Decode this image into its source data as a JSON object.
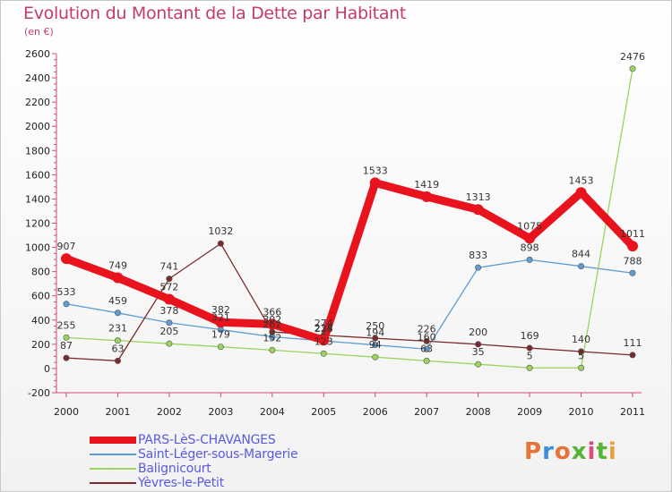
{
  "title": "Evolution du Montant de la Dette par Habitant",
  "subtitle": "(en €)",
  "logo": {
    "text": "Proxiti",
    "colors": [
      "#e6743a",
      "#3a8fd9",
      "#e6743a",
      "#55b533",
      "#d94f7a",
      "#55b533",
      "#e6a13a"
    ]
  },
  "chart_data": {
    "type": "line",
    "x": [
      "2000",
      "2001",
      "2002",
      "2003",
      "2004",
      "2005",
      "2006",
      "2007",
      "2008",
      "2009",
      "2010",
      "2011"
    ],
    "ylim": [
      -200,
      2600
    ],
    "yticks": [
      -200,
      0,
      200,
      400,
      600,
      800,
      1000,
      1200,
      1400,
      1600,
      1800,
      2000,
      2200,
      2400,
      2600
    ],
    "grid": false,
    "legend_position": "bottom-left",
    "series": [
      {
        "name": "PARS-LèS-CHAVANGES",
        "color": "#e8131c",
        "width": 9,
        "values": [
          907,
          749,
          572,
          382,
          366,
          234,
          1533,
          1419,
          1313,
          1075,
          1453,
          1011
        ],
        "labels": [
          "907",
          "749",
          "572",
          "382",
          "366",
          "234",
          "1533",
          "1419",
          "1313",
          "1075",
          "1453",
          "1011"
        ]
      },
      {
        "name": "Saint-Léger-sous-Margerie",
        "color": "#5e9cd2",
        "width": 1.3,
        "values": [
          533,
          459,
          378,
          321,
          262,
          228,
          194,
          160,
          833,
          898,
          844,
          788
        ],
        "labels": [
          "533",
          "459",
          "378",
          "321",
          "262",
          "228",
          "194",
          "160",
          "833",
          "898",
          "844",
          "788"
        ]
      },
      {
        "name": "Balignicourt",
        "color": "#99d45c",
        "width": 1.3,
        "values": [
          255,
          231,
          205,
          179,
          152,
          123,
          94,
          63,
          35,
          5,
          5,
          2476
        ],
        "labels": [
          "255",
          "231",
          "205",
          "179",
          "152",
          "123",
          "94",
          "63",
          "35",
          "5",
          "5",
          "2476"
        ]
      },
      {
        "name": "Yèvres-le-Petit",
        "color": "#7a2b2b",
        "width": 1.3,
        "values": [
          87,
          63,
          741,
          1032,
          302,
          274,
          250,
          226,
          200,
          169,
          140,
          111
        ],
        "labels": [
          "87",
          "63",
          "741",
          "1032",
          "302",
          "274",
          "250",
          "226",
          "200",
          "169",
          "140",
          "111"
        ]
      }
    ]
  }
}
